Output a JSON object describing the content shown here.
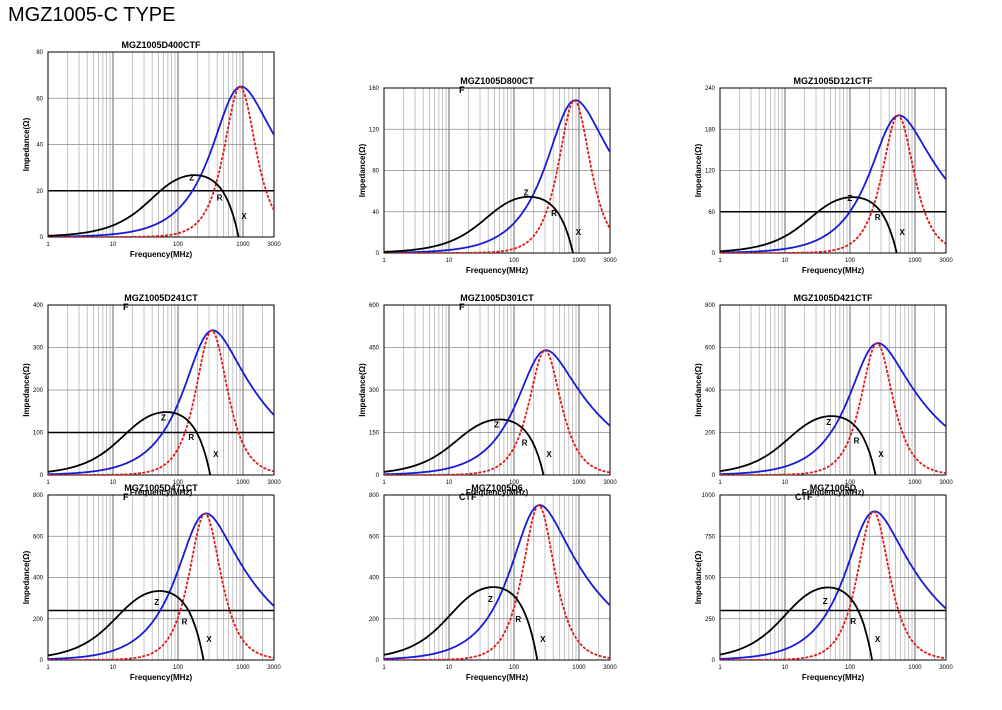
{
  "page": {
    "title": "MGZ1005-C TYPE"
  },
  "colors": {
    "z": "#1a1ad6",
    "r": "#e01a1a",
    "x": "#000000",
    "grid": "#8a8a8a"
  },
  "chart_data": [
    {
      "type": "line",
      "title": "MGZ1005D400CTF",
      "title2": "",
      "ylabel": "Impedance(Ω)",
      "xlabel": "Frequency(MHz)",
      "xscale": "log",
      "xlim": [
        1,
        3000
      ],
      "xticks": [
        "1",
        "10",
        "100",
        "1000",
        "3000"
      ],
      "ylim": [
        0,
        80
      ],
      "yticks": [
        "0",
        "20",
        "40",
        "60",
        "80"
      ],
      "ref_line": 20,
      "peak_f": 900,
      "peak_z": 65,
      "x_max": 28,
      "series": [
        {
          "name": "Z"
        },
        {
          "name": "R"
        },
        {
          "name": "X"
        }
      ]
    },
    {
      "type": "line",
      "title": "MGZ1005D800CT",
      "title2": "F",
      "ylabel": "Impedance(Ω)",
      "xlabel": "Frequency(MHz)",
      "xscale": "log",
      "xlim": [
        1,
        3000
      ],
      "xticks": [
        "1",
        "10",
        "100",
        "1000",
        "3000"
      ],
      "ylim": [
        0,
        160
      ],
      "yticks": [
        "0",
        "40",
        "80",
        "120",
        "160"
      ],
      "ref_line": null,
      "peak_f": 850,
      "peak_z": 148,
      "x_max": 57,
      "series": [
        {
          "name": "Z"
        },
        {
          "name": "R"
        },
        {
          "name": "X"
        }
      ]
    },
    {
      "type": "line",
      "title": "MGZ1005D121CTF",
      "title2": "",
      "ylabel": "Impedance(Ω)",
      "xlabel": "Frequency(MHz)",
      "xscale": "log",
      "xlim": [
        1,
        3000
      ],
      "xticks": [
        "1",
        "10",
        "100",
        "1000",
        "3000"
      ],
      "ylim": [
        0,
        240
      ],
      "yticks": [
        "0",
        "60",
        "120",
        "180",
        "240"
      ],
      "ref_line": 60,
      "peak_f": 550,
      "peak_z": 200,
      "x_max": 85,
      "series": [
        {
          "name": "Z"
        },
        {
          "name": "R"
        },
        {
          "name": "X"
        }
      ]
    },
    {
      "type": "line",
      "title": "MGZ1005D241CT",
      "title2": "F",
      "ylabel": "Impedance(Ω)",
      "xlabel": "Frequency(MHz)",
      "xscale": "log",
      "xlim": [
        1,
        3000
      ],
      "xticks": [
        "1",
        "10",
        "100",
        "1000",
        "3000"
      ],
      "ylim": [
        0,
        400
      ],
      "yticks": [
        "0",
        "100",
        "200",
        "300",
        "400"
      ],
      "ref_line": 100,
      "peak_f": 330,
      "peak_z": 340,
      "x_max": 155,
      "series": [
        {
          "name": "Z"
        },
        {
          "name": "R"
        },
        {
          "name": "X"
        }
      ]
    },
    {
      "type": "line",
      "title": "MGZ1005D301CT",
      "title2": "F",
      "ylabel": "Impedance(Ω)",
      "xlabel": "Frequency(MHz)",
      "xscale": "log",
      "xlim": [
        1,
        3000
      ],
      "xticks": [
        "1",
        "10",
        "100",
        "1000",
        "3000"
      ],
      "ylim": [
        0,
        600
      ],
      "yticks": [
        "0",
        "150",
        "300",
        "450",
        "600"
      ],
      "ref_line": null,
      "peak_f": 300,
      "peak_z": 440,
      "x_max": 205,
      "series": [
        {
          "name": "Z"
        },
        {
          "name": "R"
        },
        {
          "name": "X"
        }
      ]
    },
    {
      "type": "line",
      "title": "MGZ1005D421CTF",
      "title2": "",
      "ylabel": "Impedance(Ω)",
      "xlabel": "Frequency(MHz)",
      "xscale": "log",
      "xlim": [
        1,
        3000
      ],
      "xticks": [
        "1",
        "10",
        "100",
        "1000",
        "3000"
      ],
      "ylim": [
        0,
        800
      ],
      "yticks": [
        "0",
        "200",
        "400",
        "600",
        "800"
      ],
      "ref_line": null,
      "peak_f": 260,
      "peak_z": 620,
      "x_max": 290,
      "series": [
        {
          "name": "Z"
        },
        {
          "name": "R"
        },
        {
          "name": "X"
        }
      ]
    },
    {
      "type": "line",
      "title": "MGZ1005D471CT",
      "title2": "F",
      "ylabel": "Impedance(Ω)",
      "xlabel": "Frequency(MHz)",
      "xscale": "log",
      "xlim": [
        1,
        3000
      ],
      "xticks": [
        "1",
        "10",
        "100",
        "1000",
        "3000"
      ],
      "ylim": [
        0,
        800
      ],
      "yticks": [
        "0",
        "200",
        "400",
        "600",
        "800"
      ],
      "ref_line": 240,
      "peak_f": 260,
      "peak_z": 710,
      "x_max": 350,
      "series": [
        {
          "name": "Z"
        },
        {
          "name": "R"
        },
        {
          "name": "X"
        }
      ]
    },
    {
      "type": "line",
      "title": "MGZ1005D6",
      "title2": "CTF",
      "ylabel": "",
      "xlabel": "Frequency(MHz)",
      "xscale": "log",
      "xlim": [
        1,
        3000
      ],
      "xticks": [
        "1",
        "10",
        "100",
        "1000",
        "3000"
      ],
      "ylim": [
        0,
        800
      ],
      "yticks": [
        "0",
        "200",
        "400",
        "600",
        "800"
      ],
      "ref_line": null,
      "peak_f": 240,
      "peak_z": 750,
      "x_max": 370,
      "series": [
        {
          "name": "Z"
        },
        {
          "name": "R"
        },
        {
          "name": "X"
        }
      ]
    },
    {
      "type": "line",
      "title": "MGZ1005D",
      "title2": "CTF",
      "ylabel": "Impedance(Ω)",
      "xlabel": "Frequency(MHz)",
      "xscale": "log",
      "xlim": [
        1,
        3000
      ],
      "xticks": [
        "1",
        "10",
        "100",
        "1000",
        "3000"
      ],
      "ylim": [
        0,
        1000
      ],
      "yticks": [
        "0",
        "250",
        "500",
        "750",
        "1000"
      ],
      "ref_line": 300,
      "peak_f": 230,
      "peak_z": 900,
      "x_max": 460,
      "series": [
        {
          "name": "Z"
        },
        {
          "name": "R"
        },
        {
          "name": "X"
        }
      ]
    }
  ]
}
